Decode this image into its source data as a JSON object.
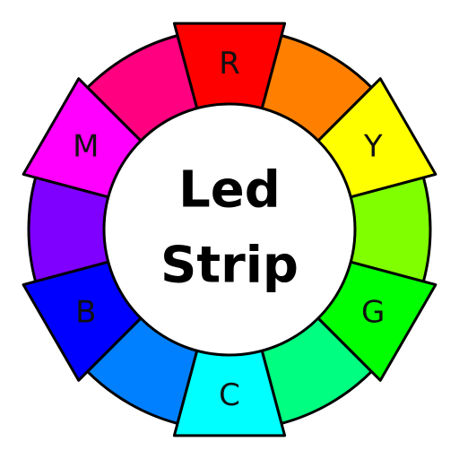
{
  "logo": {
    "line1": "Led",
    "line2": "Strip"
  },
  "wheel": {
    "segments": [
      {
        "label": "R",
        "color": "#ff0000",
        "primary": true
      },
      {
        "label": "",
        "color": "#ff8000",
        "primary": false
      },
      {
        "label": "Y",
        "color": "#ffff00",
        "primary": true
      },
      {
        "label": "",
        "color": "#80ff00",
        "primary": false
      },
      {
        "label": "G",
        "color": "#00ff00",
        "primary": true
      },
      {
        "label": "",
        "color": "#00ff80",
        "primary": false
      },
      {
        "label": "C",
        "color": "#00ffff",
        "primary": true
      },
      {
        "label": "",
        "color": "#0080ff",
        "primary": false
      },
      {
        "label": "B",
        "color": "#0000ff",
        "primary": true
      },
      {
        "label": "",
        "color": "#8000ff",
        "primary": false
      },
      {
        "label": "M",
        "color": "#ff00ff",
        "primary": true
      },
      {
        "label": "",
        "color": "#ff0080",
        "primary": false
      }
    ]
  }
}
